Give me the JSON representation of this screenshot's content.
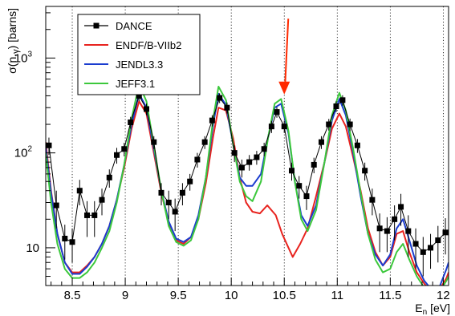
{
  "chart_data": {
    "type": "line",
    "xlabel_main": "E",
    "xlabel_sub": "n",
    "xlabel_unit": " [eV]",
    "ylabel_main": "σ(n,",
    "ylabel_gamma": "γ",
    "ylabel_unit": ") [barns]",
    "xlim": [
      8.25,
      12.05
    ],
    "ylim": [
      4,
      3500
    ],
    "yscale": "log",
    "x_ticks": [
      {
        "value": 8.5,
        "label": "8.5"
      },
      {
        "value": 9,
        "label": "9"
      },
      {
        "value": 9.5,
        "label": "9.5"
      },
      {
        "value": 10,
        "label": "10"
      },
      {
        "value": 10.5,
        "label": "10.5"
      },
      {
        "value": 11,
        "label": "11"
      },
      {
        "value": 11.5,
        "label": "11.5"
      },
      {
        "value": 12,
        "label": "12"
      }
    ],
    "y_ticks": [
      {
        "value": 10,
        "label": "10"
      },
      {
        "value": 100,
        "label": "10",
        "sup": "2"
      },
      {
        "value": 1000,
        "label": "10",
        "sup": "3"
      }
    ],
    "grid": "vertical dotted at major x ticks",
    "legend_position": "top-left",
    "annotation": {
      "type": "arrow",
      "color": "#ff2a00",
      "x": 10.5,
      "y_from": 2600,
      "y_to": 430
    },
    "series": [
      {
        "name": "DANCE",
        "color": "#000000",
        "marker": "square",
        "points": [
          {
            "x": 8.28,
            "y": 120,
            "err": 25
          },
          {
            "x": 8.35,
            "y": 28,
            "err": 12
          },
          {
            "x": 8.43,
            "y": 12.5,
            "err": 5
          },
          {
            "x": 8.5,
            "y": 11.5,
            "err": 4.5
          },
          {
            "x": 8.57,
            "y": 40,
            "err": 12
          },
          {
            "x": 8.64,
            "y": 22,
            "err": 9
          },
          {
            "x": 8.71,
            "y": 22,
            "err": 9
          },
          {
            "x": 8.78,
            "y": 32,
            "err": 10
          },
          {
            "x": 8.85,
            "y": 55,
            "err": 12
          },
          {
            "x": 8.92,
            "y": 95,
            "err": 18
          },
          {
            "x": 8.99,
            "y": 110,
            "err": 18
          },
          {
            "x": 9.05,
            "y": 210,
            "err": 30
          },
          {
            "x": 9.13,
            "y": 400,
            "err": 50
          },
          {
            "x": 9.2,
            "y": 290,
            "err": 40
          },
          {
            "x": 9.27,
            "y": 130,
            "err": 20
          },
          {
            "x": 9.34,
            "y": 38,
            "err": 10
          },
          {
            "x": 9.41,
            "y": 30,
            "err": 10
          },
          {
            "x": 9.47,
            "y": 24,
            "err": 9
          },
          {
            "x": 9.54,
            "y": 38,
            "err": 10
          },
          {
            "x": 9.61,
            "y": 50,
            "err": 10
          },
          {
            "x": 9.68,
            "y": 85,
            "err": 15
          },
          {
            "x": 9.75,
            "y": 130,
            "err": 20
          },
          {
            "x": 9.82,
            "y": 220,
            "err": 30
          },
          {
            "x": 9.89,
            "y": 380,
            "err": 45
          },
          {
            "x": 9.96,
            "y": 300,
            "err": 40
          },
          {
            "x": 10.03,
            "y": 100,
            "err": 20
          },
          {
            "x": 10.1,
            "y": 70,
            "err": 15
          },
          {
            "x": 10.17,
            "y": 80,
            "err": 15
          },
          {
            "x": 10.24,
            "y": 90,
            "err": 15
          },
          {
            "x": 10.31,
            "y": 110,
            "err": 18
          },
          {
            "x": 10.38,
            "y": 190,
            "err": 28
          },
          {
            "x": 10.43,
            "y": 270,
            "err": 35
          },
          {
            "x": 10.5,
            "y": 190,
            "err": 28
          },
          {
            "x": 10.57,
            "y": 65,
            "err": 14
          },
          {
            "x": 10.64,
            "y": 45,
            "err": 12
          },
          {
            "x": 10.71,
            "y": 35,
            "err": 10
          },
          {
            "x": 10.78,
            "y": 75,
            "err": 14
          },
          {
            "x": 10.85,
            "y": 130,
            "err": 20
          },
          {
            "x": 10.92,
            "y": 200,
            "err": 28
          },
          {
            "x": 10.99,
            "y": 310,
            "err": 40
          },
          {
            "x": 11.05,
            "y": 360,
            "err": 45
          },
          {
            "x": 11.12,
            "y": 200,
            "err": 30
          },
          {
            "x": 11.19,
            "y": 120,
            "err": 20
          },
          {
            "x": 11.26,
            "y": 65,
            "err": 14
          },
          {
            "x": 11.33,
            "y": 32,
            "err": 10
          },
          {
            "x": 11.4,
            "y": 16,
            "err": 7
          },
          {
            "x": 11.47,
            "y": 15,
            "err": 6
          },
          {
            "x": 11.54,
            "y": 20,
            "err": 8
          },
          {
            "x": 11.6,
            "y": 27,
            "err": 10
          },
          {
            "x": 11.67,
            "y": 15,
            "err": 7
          },
          {
            "x": 11.74,
            "y": 11,
            "err": 5
          },
          {
            "x": 11.81,
            "y": 9,
            "err": 4
          },
          {
            "x": 11.88,
            "y": 10,
            "err": 4
          },
          {
            "x": 11.95,
            "y": 12,
            "err": 5
          },
          {
            "x": 12.02,
            "y": 14.5,
            "err": 6
          }
        ]
      },
      {
        "name": "ENDF/B-VIIb2",
        "color": "#e8231e",
        "points": [
          [
            8.25,
            130
          ],
          [
            8.3,
            40
          ],
          [
            8.36,
            14
          ],
          [
            8.43,
            7
          ],
          [
            8.5,
            5.5
          ],
          [
            8.57,
            5.5
          ],
          [
            8.64,
            6.5
          ],
          [
            8.71,
            8
          ],
          [
            8.78,
            11
          ],
          [
            8.85,
            17
          ],
          [
            8.92,
            32
          ],
          [
            8.99,
            70
          ],
          [
            9.06,
            180
          ],
          [
            9.13,
            350
          ],
          [
            9.2,
            260
          ],
          [
            9.27,
            100
          ],
          [
            9.34,
            38
          ],
          [
            9.41,
            18
          ],
          [
            9.48,
            12
          ],
          [
            9.55,
            11
          ],
          [
            9.62,
            13
          ],
          [
            9.69,
            20
          ],
          [
            9.76,
            48
          ],
          [
            9.83,
            150
          ],
          [
            9.88,
            300
          ],
          [
            9.95,
            280
          ],
          [
            10.02,
            140
          ],
          [
            10.08,
            55
          ],
          [
            10.14,
            30
          ],
          [
            10.2,
            24
          ],
          [
            10.27,
            23
          ],
          [
            10.34,
            28
          ],
          [
            10.42,
            22
          ],
          [
            10.48,
            14
          ],
          [
            10.54,
            10
          ],
          [
            10.58,
            8
          ],
          [
            10.65,
            11
          ],
          [
            10.72,
            16
          ],
          [
            10.8,
            35
          ],
          [
            10.88,
            80
          ],
          [
            10.95,
            180
          ],
          [
            11.02,
            260
          ],
          [
            11.08,
            190
          ],
          [
            11.15,
            90
          ],
          [
            11.22,
            40
          ],
          [
            11.29,
            16
          ],
          [
            11.36,
            9
          ],
          [
            11.43,
            6.5
          ],
          [
            11.5,
            8
          ],
          [
            11.56,
            14
          ],
          [
            11.62,
            15
          ],
          [
            11.68,
            9
          ],
          [
            11.75,
            5.5
          ],
          [
            11.82,
            4.2
          ],
          [
            11.9,
            3.3
          ],
          [
            11.97,
            3.7
          ],
          [
            12.03,
            4.8
          ],
          [
            12.05,
            5.5
          ]
        ]
      },
      {
        "name": "JENDL3.3",
        "color": "#1a3ccf",
        "points": [
          [
            8.25,
            115
          ],
          [
            8.3,
            38
          ],
          [
            8.36,
            14
          ],
          [
            8.43,
            7
          ],
          [
            8.5,
            5.3
          ],
          [
            8.57,
            5.3
          ],
          [
            8.64,
            6.3
          ],
          [
            8.71,
            8
          ],
          [
            8.78,
            11
          ],
          [
            8.85,
            17
          ],
          [
            8.92,
            32
          ],
          [
            8.99,
            75
          ],
          [
            9.06,
            200
          ],
          [
            9.13,
            420
          ],
          [
            9.2,
            300
          ],
          [
            9.27,
            110
          ],
          [
            9.34,
            40
          ],
          [
            9.41,
            19
          ],
          [
            9.48,
            12.5
          ],
          [
            9.55,
            11.5
          ],
          [
            9.62,
            13
          ],
          [
            9.69,
            22
          ],
          [
            9.76,
            55
          ],
          [
            9.83,
            200
          ],
          [
            9.88,
            420
          ],
          [
            9.95,
            320
          ],
          [
            10.02,
            120
          ],
          [
            10.08,
            55
          ],
          [
            10.14,
            45
          ],
          [
            10.2,
            45
          ],
          [
            10.28,
            60
          ],
          [
            10.35,
            150
          ],
          [
            10.41,
            300
          ],
          [
            10.47,
            330
          ],
          [
            10.54,
            160
          ],
          [
            10.6,
            50
          ],
          [
            10.66,
            22
          ],
          [
            10.72,
            17
          ],
          [
            10.8,
            28
          ],
          [
            10.88,
            80
          ],
          [
            10.95,
            220
          ],
          [
            11.02,
            370
          ],
          [
            11.08,
            250
          ],
          [
            11.15,
            100
          ],
          [
            11.22,
            35
          ],
          [
            11.29,
            14
          ],
          [
            11.36,
            8.5
          ],
          [
            11.43,
            6.5
          ],
          [
            11.5,
            8.5
          ],
          [
            11.56,
            16
          ],
          [
            11.62,
            20
          ],
          [
            11.68,
            12
          ],
          [
            11.75,
            6.5
          ],
          [
            11.82,
            4.5
          ],
          [
            11.9,
            3.5
          ],
          [
            11.97,
            4
          ],
          [
            12.03,
            6
          ],
          [
            12.05,
            7
          ]
        ]
      },
      {
        "name": "JEFF3.1",
        "color": "#3cc83c",
        "points": [
          [
            8.25,
            100
          ],
          [
            8.3,
            30
          ],
          [
            8.36,
            11
          ],
          [
            8.43,
            6
          ],
          [
            8.5,
            4.8
          ],
          [
            8.57,
            4.8
          ],
          [
            8.64,
            5.5
          ],
          [
            8.71,
            7
          ],
          [
            8.78,
            10
          ],
          [
            8.85,
            15
          ],
          [
            8.92,
            30
          ],
          [
            8.99,
            75
          ],
          [
            9.06,
            230
          ],
          [
            9.13,
            530
          ],
          [
            9.2,
            350
          ],
          [
            9.27,
            120
          ],
          [
            9.34,
            40
          ],
          [
            9.41,
            17
          ],
          [
            9.48,
            11.5
          ],
          [
            9.55,
            10.5
          ],
          [
            9.62,
            12
          ],
          [
            9.69,
            20
          ],
          [
            9.76,
            55
          ],
          [
            9.83,
            230
          ],
          [
            9.88,
            500
          ],
          [
            9.95,
            360
          ],
          [
            10.02,
            120
          ],
          [
            10.08,
            50
          ],
          [
            10.14,
            35
          ],
          [
            10.2,
            31
          ],
          [
            10.28,
            50
          ],
          [
            10.35,
            150
          ],
          [
            10.41,
            330
          ],
          [
            10.47,
            370
          ],
          [
            10.54,
            170
          ],
          [
            10.6,
            50
          ],
          [
            10.66,
            20
          ],
          [
            10.72,
            15
          ],
          [
            10.8,
            25
          ],
          [
            10.88,
            80
          ],
          [
            10.95,
            250
          ],
          [
            11.02,
            430
          ],
          [
            11.08,
            280
          ],
          [
            11.15,
            110
          ],
          [
            11.22,
            38
          ],
          [
            11.29,
            14
          ],
          [
            11.36,
            7.5
          ],
          [
            11.43,
            5.5
          ],
          [
            11.5,
            6
          ],
          [
            11.56,
            9
          ],
          [
            11.62,
            11
          ],
          [
            11.68,
            7.5
          ],
          [
            11.75,
            5
          ],
          [
            11.82,
            3.8
          ],
          [
            11.9,
            3.2
          ],
          [
            11.97,
            3.5
          ],
          [
            12.03,
            4.5
          ],
          [
            12.05,
            5
          ]
        ]
      }
    ]
  }
}
